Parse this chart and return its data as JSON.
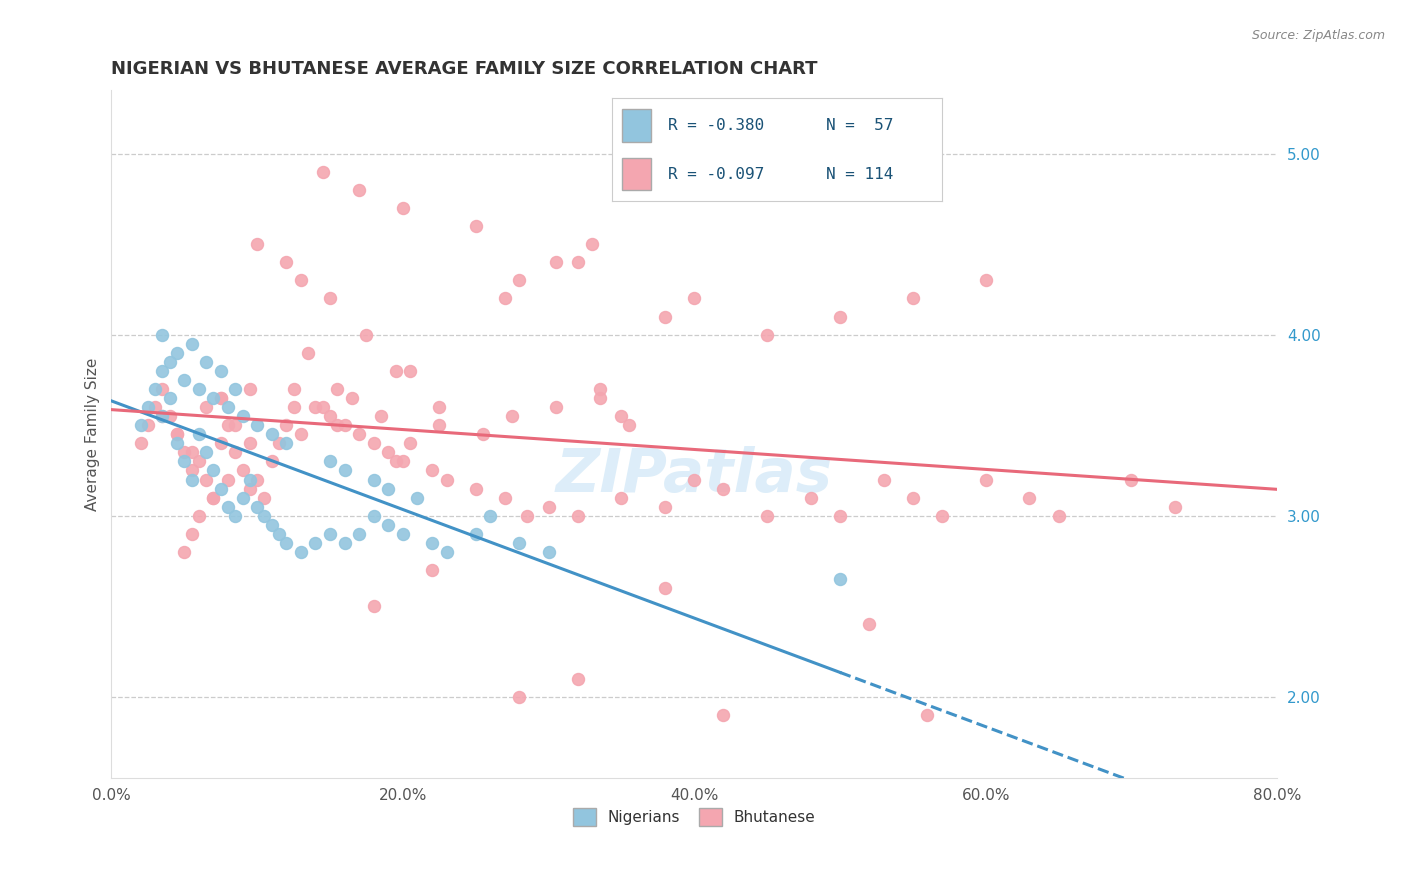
{
  "title": "NIGERIAN VS BHUTANESE AVERAGE FAMILY SIZE CORRELATION CHART",
  "source_text": "Source: ZipAtlas.com",
  "ylabel": "Average Family Size",
  "xmin": 0.0,
  "xmax": 0.8,
  "ymin": 1.55,
  "ymax": 5.35,
  "yticks_right": [
    2.0,
    3.0,
    4.0,
    5.0
  ],
  "xtick_labels": [
    "0.0%",
    "20.0%",
    "40.0%",
    "60.0%",
    "80.0%"
  ],
  "xtick_values": [
    0.0,
    0.2,
    0.4,
    0.6,
    0.8
  ],
  "nigerian_color": "#92c5de",
  "bhutanese_color": "#f4a6b0",
  "nigerian_line_color": "#4292c6",
  "bhutanese_line_color": "#e8697a",
  "watermark": "ZIPatlas",
  "legend_R_nigerian": "R = -0.380",
  "legend_N_nigerian": "N =  57",
  "legend_R_bhutanese": "R = -0.097",
  "legend_N_bhutanese": "N = 114",
  "nigerian_scatter_x": [
    0.02,
    0.025,
    0.03,
    0.035,
    0.04,
    0.045,
    0.05,
    0.055,
    0.06,
    0.065,
    0.07,
    0.075,
    0.08,
    0.085,
    0.09,
    0.095,
    0.1,
    0.105,
    0.11,
    0.115,
    0.12,
    0.13,
    0.14,
    0.15,
    0.16,
    0.17,
    0.18,
    0.19,
    0.2,
    0.22,
    0.23,
    0.28,
    0.3,
    0.25,
    0.26,
    0.035,
    0.04,
    0.05,
    0.06,
    0.07,
    0.08,
    0.09,
    0.1,
    0.11,
    0.12,
    0.15,
    0.16,
    0.18,
    0.19,
    0.21,
    0.035,
    0.045,
    0.055,
    0.065,
    0.075,
    0.085,
    0.5
  ],
  "nigerian_scatter_y": [
    3.5,
    3.6,
    3.7,
    3.55,
    3.65,
    3.4,
    3.3,
    3.2,
    3.45,
    3.35,
    3.25,
    3.15,
    3.05,
    3.0,
    3.1,
    3.2,
    3.05,
    3.0,
    2.95,
    2.9,
    2.85,
    2.8,
    2.85,
    2.9,
    2.85,
    2.9,
    3.0,
    2.95,
    2.9,
    2.85,
    2.8,
    2.85,
    2.8,
    2.9,
    3.0,
    3.8,
    3.85,
    3.75,
    3.7,
    3.65,
    3.6,
    3.55,
    3.5,
    3.45,
    3.4,
    3.3,
    3.25,
    3.2,
    3.15,
    3.1,
    4.0,
    3.9,
    3.95,
    3.85,
    3.8,
    3.7,
    2.65
  ],
  "bhutanese_scatter_x": [
    0.02,
    0.025,
    0.03,
    0.035,
    0.04,
    0.045,
    0.05,
    0.055,
    0.06,
    0.065,
    0.07,
    0.075,
    0.08,
    0.085,
    0.09,
    0.095,
    0.1,
    0.105,
    0.11,
    0.115,
    0.12,
    0.13,
    0.14,
    0.15,
    0.16,
    0.17,
    0.18,
    0.19,
    0.2,
    0.22,
    0.23,
    0.25,
    0.27,
    0.3,
    0.32,
    0.35,
    0.38,
    0.4,
    0.42,
    0.45,
    0.48,
    0.5,
    0.53,
    0.55,
    0.57,
    0.6,
    0.63,
    0.65,
    0.7,
    0.73,
    0.035,
    0.045,
    0.055,
    0.065,
    0.075,
    0.085,
    0.095,
    0.125,
    0.145,
    0.165,
    0.185,
    0.195,
    0.205,
    0.225,
    0.255,
    0.275,
    0.305,
    0.335,
    0.355,
    0.305,
    0.335,
    0.205,
    0.225,
    0.135,
    0.155,
    0.175,
    0.195,
    0.27,
    0.28,
    0.32,
    0.33,
    0.38,
    0.4,
    0.45,
    0.5,
    0.55,
    0.6,
    0.35,
    0.25,
    0.2,
    0.17,
    0.15,
    0.13,
    0.12,
    0.1,
    0.08,
    0.07,
    0.06,
    0.055,
    0.05,
    0.145,
    0.285,
    0.38,
    0.42,
    0.52,
    0.56,
    0.32,
    0.28,
    0.22,
    0.18,
    0.155,
    0.125,
    0.095,
    0.075
  ],
  "bhutanese_scatter_y": [
    3.4,
    3.5,
    3.6,
    3.7,
    3.55,
    3.45,
    3.35,
    3.25,
    3.3,
    3.2,
    3.1,
    3.4,
    3.5,
    3.35,
    3.25,
    3.15,
    3.2,
    3.1,
    3.3,
    3.4,
    3.5,
    3.45,
    3.6,
    3.55,
    3.5,
    3.45,
    3.4,
    3.35,
    3.3,
    3.25,
    3.2,
    3.15,
    3.1,
    3.05,
    3.0,
    3.1,
    3.05,
    3.2,
    3.15,
    3.0,
    3.1,
    3.0,
    3.2,
    3.1,
    3.0,
    3.2,
    3.1,
    3.0,
    3.2,
    3.05,
    3.55,
    3.45,
    3.35,
    3.6,
    3.65,
    3.5,
    3.4,
    3.7,
    3.6,
    3.65,
    3.55,
    3.3,
    3.4,
    3.5,
    3.45,
    3.55,
    3.6,
    3.65,
    3.5,
    4.4,
    3.7,
    3.8,
    3.6,
    3.9,
    3.7,
    4.0,
    3.8,
    4.2,
    4.3,
    4.4,
    4.5,
    4.1,
    4.2,
    4.0,
    4.1,
    4.2,
    4.3,
    3.55,
    4.6,
    4.7,
    4.8,
    4.2,
    4.3,
    4.4,
    4.5,
    3.2,
    3.1,
    3.0,
    2.9,
    2.8,
    4.9,
    3.0,
    2.6,
    1.9,
    2.4,
    1.9,
    2.1,
    2.0,
    2.7,
    2.5,
    3.5,
    3.6,
    3.7,
    3.65
  ]
}
